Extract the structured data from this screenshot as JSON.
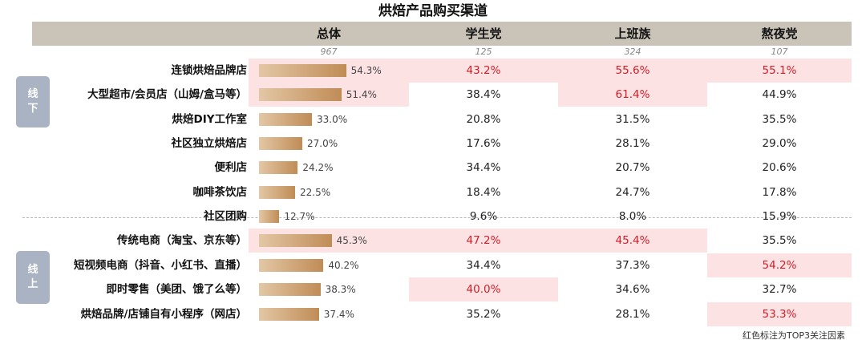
{
  "chart_data": {
    "type": "table",
    "title": "烘焙产品购买渠道",
    "columns": [
      "总体",
      "学生党",
      "上班族",
      "熬夜党"
    ],
    "counts": [
      "967",
      "125",
      "324",
      "107"
    ],
    "groups": [
      {
        "label": "线下",
        "rows": [
          0,
          6
        ]
      },
      {
        "label": "线上",
        "rows": [
          7,
          10
        ]
      }
    ],
    "rows": [
      {
        "label": "连锁烘焙品牌店",
        "values": [
          "54.3%",
          "43.2%",
          "55.6%",
          "55.1%"
        ],
        "total": 54.3,
        "highlight": [
          true,
          true,
          true,
          true
        ]
      },
      {
        "label": "大型超市/会员店（山姆/盒马等）",
        "values": [
          "51.4%",
          "38.4%",
          "61.4%",
          "44.9%"
        ],
        "total": 51.4,
        "highlight": [
          true,
          false,
          true,
          false
        ]
      },
      {
        "label": "烘焙DIY工作室",
        "values": [
          "33.0%",
          "20.8%",
          "31.5%",
          "35.5%"
        ],
        "total": 33.0,
        "highlight": [
          false,
          false,
          false,
          false
        ]
      },
      {
        "label": "社区独立烘焙店",
        "values": [
          "27.0%",
          "17.6%",
          "28.1%",
          "29.0%"
        ],
        "total": 27.0,
        "highlight": [
          false,
          false,
          false,
          false
        ]
      },
      {
        "label": "便利店",
        "values": [
          "24.2%",
          "34.4%",
          "20.7%",
          "20.6%"
        ],
        "total": 24.2,
        "highlight": [
          false,
          false,
          false,
          false
        ]
      },
      {
        "label": "咖啡茶饮店",
        "values": [
          "22.5%",
          "18.4%",
          "24.7%",
          "17.8%"
        ],
        "total": 22.5,
        "highlight": [
          false,
          false,
          false,
          false
        ]
      },
      {
        "label": "社区团购",
        "values": [
          "12.7%",
          "9.6%",
          "8.0%",
          "15.9%"
        ],
        "total": 12.7,
        "highlight": [
          false,
          false,
          false,
          false
        ]
      },
      {
        "label": "传统电商（淘宝、京东等）",
        "values": [
          "45.3%",
          "47.2%",
          "45.4%",
          "35.5%"
        ],
        "total": 45.3,
        "highlight": [
          true,
          true,
          true,
          false
        ]
      },
      {
        "label": "短视频电商（抖音、小红书、直播）",
        "values": [
          "40.2%",
          "34.4%",
          "37.3%",
          "54.2%"
        ],
        "total": 40.2,
        "highlight": [
          false,
          false,
          false,
          true
        ]
      },
      {
        "label": "即时零售（美团、饿了么等）",
        "values": [
          "38.3%",
          "40.0%",
          "34.6%",
          "32.7%"
        ],
        "total": 38.3,
        "highlight": [
          false,
          true,
          false,
          false
        ]
      },
      {
        "label": "烘焙品牌/店铺自有小程序（网店）",
        "values": [
          "37.4%",
          "35.2%",
          "28.1%",
          "53.3%"
        ],
        "total": 37.4,
        "highlight": [
          false,
          false,
          false,
          true
        ]
      }
    ],
    "footnote": "红色标注为TOP3关注因素",
    "colors": {
      "highlight_bg": "#fde2e4",
      "highlight_text": "#d0202a",
      "bar_start": "#e3c7a5",
      "bar_end": "#c08c56",
      "header_bg": "#c9c3b8",
      "tag_bg": "#a9b3c3"
    }
  }
}
